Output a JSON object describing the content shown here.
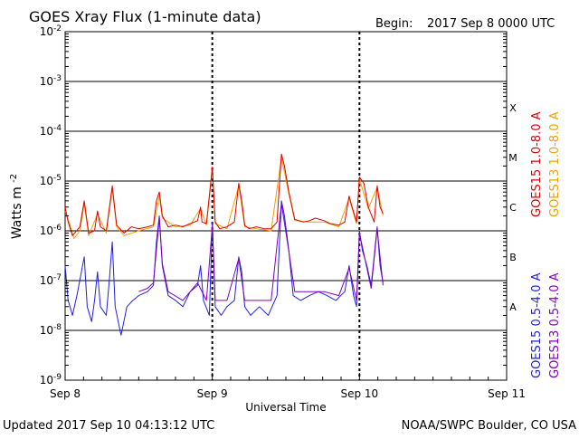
{
  "chart_data": {
    "type": "line",
    "title": "GOES Xray Flux (1-minute data)",
    "begin_label": "Begin:",
    "begin_value": "2017 Sep 8 0000 UTC",
    "xlabel": "Universal Time",
    "ylabel_base": "Watts m",
    "ylabel_sup": "-2",
    "y_scale": "log",
    "ylim": [
      1e-09,
      0.01
    ],
    "xlim_days": [
      "2017-09-08",
      "2017-09-11"
    ],
    "grid": true,
    "x_ticks": [
      {
        "label": "Sep 8",
        "day": 0
      },
      {
        "label": "Sep 9",
        "day": 1
      },
      {
        "label": "Sep 10",
        "day": 2
      },
      {
        "label": "Sep 11",
        "day": 3
      }
    ],
    "y_ticks": [
      {
        "base": "10",
        "exp": "-9",
        "value": 1e-09
      },
      {
        "base": "10",
        "exp": "-8",
        "value": 1e-08
      },
      {
        "base": "10",
        "exp": "-7",
        "value": 1e-07
      },
      {
        "base": "10",
        "exp": "-6",
        "value": 1e-06
      },
      {
        "base": "10",
        "exp": "-5",
        "value": 1e-05
      },
      {
        "base": "10",
        "exp": "-4",
        "value": 0.0001
      },
      {
        "base": "10",
        "exp": "-3",
        "value": 0.001
      },
      {
        "base": "10",
        "exp": "-2",
        "value": 0.01
      }
    ],
    "flare_classes": [
      {
        "label": "A",
        "value": 3e-08
      },
      {
        "label": "B",
        "value": 3e-07
      },
      {
        "label": "C",
        "value": 3e-06
      },
      {
        "label": "M",
        "value": 3e-05
      },
      {
        "label": "X",
        "value": 0.0003
      }
    ],
    "legend": [
      {
        "name": "GOES15 1.0-8.0 A",
        "color": "#e00000"
      },
      {
        "name": "GOES13 1.0-8.0 A",
        "color": "#f0a000"
      },
      {
        "name": "GOES15 0.5-4.0 A",
        "color": "#2020e0"
      },
      {
        "name": "GOES13 0.5-4.0 A",
        "color": "#8000c0"
      }
    ],
    "series": [
      {
        "name": "GOES15 1.0-8.0 A",
        "color": "#e00000",
        "points": [
          [
            0.0,
            3e-06
          ],
          [
            0.02,
            1.5e-06
          ],
          [
            0.05,
            8e-07
          ],
          [
            0.1,
            1.2e-06
          ],
          [
            0.13,
            4e-06
          ],
          [
            0.16,
            9e-07
          ],
          [
            0.2,
            1e-06
          ],
          [
            0.22,
            2.5e-06
          ],
          [
            0.24,
            1.2e-06
          ],
          [
            0.28,
            1e-06
          ],
          [
            0.32,
            8e-06
          ],
          [
            0.35,
            1.3e-06
          ],
          [
            0.4,
            9e-07
          ],
          [
            0.45,
            1.2e-06
          ],
          [
            0.5,
            1.1e-06
          ],
          [
            0.56,
            1.2e-06
          ],
          [
            0.6,
            1.3e-06
          ],
          [
            0.62,
            4e-06
          ],
          [
            0.64,
            6e-06
          ],
          [
            0.66,
            2e-06
          ],
          [
            0.7,
            1.2e-06
          ],
          [
            0.75,
            1.3e-06
          ],
          [
            0.8,
            1.2e-06
          ],
          [
            0.85,
            1.4e-06
          ],
          [
            0.9,
            1.6e-06
          ],
          [
            0.92,
            3e-06
          ],
          [
            0.93,
            1.5e-06
          ],
          [
            0.96,
            1.4e-06
          ],
          [
            1.0,
            1.9e-05
          ],
          [
            1.02,
            1.5e-06
          ],
          [
            1.05,
            1.1e-06
          ],
          [
            1.1,
            1.2e-06
          ],
          [
            1.15,
            1.5e-06
          ],
          [
            1.18,
            9e-06
          ],
          [
            1.2,
            4e-06
          ],
          [
            1.22,
            1.3e-06
          ],
          [
            1.25,
            1.1e-06
          ],
          [
            1.3,
            1.2e-06
          ],
          [
            1.35,
            1.1e-06
          ],
          [
            1.4,
            1.1e-06
          ],
          [
            1.44,
            1.5e-06
          ],
          [
            1.47,
            3.5e-05
          ],
          [
            1.49,
            2e-05
          ],
          [
            1.52,
            6e-06
          ],
          [
            1.56,
            1.7e-06
          ],
          [
            1.62,
            1.5e-06
          ],
          [
            1.66,
            1.6e-06
          ],
          [
            1.7,
            1.8e-06
          ],
          [
            1.76,
            1.6e-06
          ],
          [
            1.8,
            1.4e-06
          ],
          [
            1.86,
            1.3e-06
          ],
          [
            1.9,
            1.5e-06
          ],
          [
            1.93,
            5e-06
          ],
          [
            1.95,
            3e-06
          ],
          [
            1.98,
            1.5e-06
          ],
          [
            2.0,
            1.2e-05
          ],
          [
            2.03,
            9e-06
          ],
          [
            2.06,
            3e-06
          ],
          [
            2.1,
            1.5e-06
          ],
          [
            2.12,
            8e-06
          ],
          [
            2.14,
            3e-06
          ],
          [
            2.16,
            2.2e-06
          ]
        ]
      },
      {
        "name": "GOES13 1.0-8.0 A",
        "color": "#f0a000",
        "points": [
          [
            0.0,
            2.5e-06
          ],
          [
            0.03,
            1.4e-06
          ],
          [
            0.06,
            7e-07
          ],
          [
            0.1,
            1e-06
          ],
          [
            0.13,
            3.5e-06
          ],
          [
            0.16,
            8e-07
          ],
          [
            0.22,
            2.2e-06
          ],
          [
            0.28,
            9e-07
          ],
          [
            0.32,
            7e-06
          ],
          [
            0.35,
            1.2e-06
          ],
          [
            0.4,
            8e-07
          ],
          [
            0.5,
            1e-06
          ],
          [
            0.6,
            1.2e-06
          ],
          [
            0.64,
            5e-06
          ],
          [
            0.66,
            1.8e-06
          ],
          [
            0.75,
            1.2e-06
          ],
          [
            0.85,
            1.3e-06
          ],
          [
            0.92,
            2.8e-06
          ],
          [
            0.96,
            1.3e-06
          ],
          [
            1.0,
            1.7e-05
          ],
          [
            1.02,
            1.4e-06
          ],
          [
            1.1,
            1.1e-06
          ],
          [
            1.18,
            8e-06
          ],
          [
            1.22,
            1.2e-06
          ],
          [
            1.3,
            1.1e-06
          ],
          [
            1.4,
            1e-06
          ],
          [
            1.47,
            3e-05
          ],
          [
            1.52,
            5.5e-06
          ],
          [
            1.56,
            1.6e-06
          ],
          [
            1.66,
            1.5e-06
          ],
          [
            1.76,
            1.5e-06
          ],
          [
            1.86,
            1.2e-06
          ],
          [
            1.93,
            4.5e-06
          ],
          [
            1.98,
            1.4e-06
          ],
          [
            2.0,
            1.1e-05
          ],
          [
            2.06,
            2.8e-06
          ],
          [
            2.12,
            7.5e-06
          ],
          [
            2.16,
            2e-06
          ]
        ]
      },
      {
        "name": "GOES15 0.5-4.0 A",
        "color": "#2020e0",
        "points": [
          [
            0.0,
            2e-07
          ],
          [
            0.02,
            4e-08
          ],
          [
            0.05,
            2e-08
          ],
          [
            0.08,
            5e-08
          ],
          [
            0.13,
            3e-07
          ],
          [
            0.15,
            3e-08
          ],
          [
            0.18,
            1.5e-08
          ],
          [
            0.2,
            4e-08
          ],
          [
            0.22,
            1.5e-07
          ],
          [
            0.24,
            3e-08
          ],
          [
            0.28,
            2e-08
          ],
          [
            0.3,
            1e-07
          ],
          [
            0.32,
            6e-07
          ],
          [
            0.34,
            3e-08
          ],
          [
            0.38,
            8e-09
          ],
          [
            0.42,
            3e-08
          ],
          [
            0.46,
            4e-08
          ],
          [
            0.5,
            5e-08
          ],
          [
            0.56,
            6e-08
          ],
          [
            0.6,
            8e-08
          ],
          [
            0.62,
            6e-07
          ],
          [
            0.64,
            2e-06
          ],
          [
            0.66,
            2e-07
          ],
          [
            0.7,
            5e-08
          ],
          [
            0.75,
            4e-08
          ],
          [
            0.8,
            3e-08
          ],
          [
            0.85,
            6e-08
          ],
          [
            0.9,
            8e-08
          ],
          [
            0.92,
            2e-07
          ],
          [
            0.94,
            4e-08
          ],
          [
            0.98,
            2e-08
          ],
          [
            1.0,
            1.5e-06
          ],
          [
            1.02,
            3e-08
          ],
          [
            1.06,
            2e-08
          ],
          [
            1.1,
            3e-08
          ],
          [
            1.15,
            4e-08
          ],
          [
            1.18,
            3e-07
          ],
          [
            1.2,
            1.5e-07
          ],
          [
            1.22,
            3e-08
          ],
          [
            1.26,
            2e-08
          ],
          [
            1.32,
            3e-08
          ],
          [
            1.38,
            2e-08
          ],
          [
            1.44,
            5e-08
          ],
          [
            1.47,
            4e-06
          ],
          [
            1.49,
            2e-06
          ],
          [
            1.52,
            4e-07
          ],
          [
            1.55,
            5e-08
          ],
          [
            1.6,
            4e-08
          ],
          [
            1.66,
            5e-08
          ],
          [
            1.72,
            6e-08
          ],
          [
            1.78,
            5e-08
          ],
          [
            1.84,
            4e-08
          ],
          [
            1.9,
            6e-08
          ],
          [
            1.93,
            2e-07
          ],
          [
            1.96,
            5e-08
          ],
          [
            1.98,
            3e-08
          ],
          [
            2.0,
            1e-06
          ],
          [
            2.02,
            4e-07
          ],
          [
            2.05,
            2e-07
          ],
          [
            2.08,
            8e-08
          ],
          [
            2.12,
            1.2e-06
          ],
          [
            2.14,
            2e-07
          ],
          [
            2.16,
            9e-08
          ]
        ]
      },
      {
        "name": "GOES13 0.5-4.0 A",
        "color": "#8000c0",
        "points": [
          [
            0.5,
            6e-08
          ],
          [
            0.56,
            7e-08
          ],
          [
            0.6,
            9e-08
          ],
          [
            0.64,
            1.8e-06
          ],
          [
            0.66,
            2.2e-07
          ],
          [
            0.7,
            6e-08
          ],
          [
            0.8,
            4e-08
          ],
          [
            0.9,
            9e-08
          ],
          [
            0.96,
            4e-08
          ],
          [
            1.0,
            1.3e-06
          ],
          [
            1.02,
            4e-08
          ],
          [
            1.1,
            4e-08
          ],
          [
            1.18,
            2.8e-07
          ],
          [
            1.22,
            4e-08
          ],
          [
            1.3,
            4e-08
          ],
          [
            1.4,
            4e-08
          ],
          [
            1.47,
            3.5e-06
          ],
          [
            1.52,
            3.8e-07
          ],
          [
            1.56,
            6e-08
          ],
          [
            1.66,
            6e-08
          ],
          [
            1.76,
            6e-08
          ],
          [
            1.86,
            5e-08
          ],
          [
            1.93,
            1.8e-07
          ],
          [
            1.98,
            4e-08
          ],
          [
            2.0,
            9e-07
          ],
          [
            2.05,
            1.8e-07
          ],
          [
            2.08,
            7e-08
          ],
          [
            2.12,
            1.1e-06
          ],
          [
            2.16,
            8e-08
          ]
        ]
      }
    ]
  },
  "footer": {
    "updated": "Updated 2017 Sep 10 04:13:12 UTC",
    "credit": "NOAA/SWPC Boulder, CO USA"
  }
}
